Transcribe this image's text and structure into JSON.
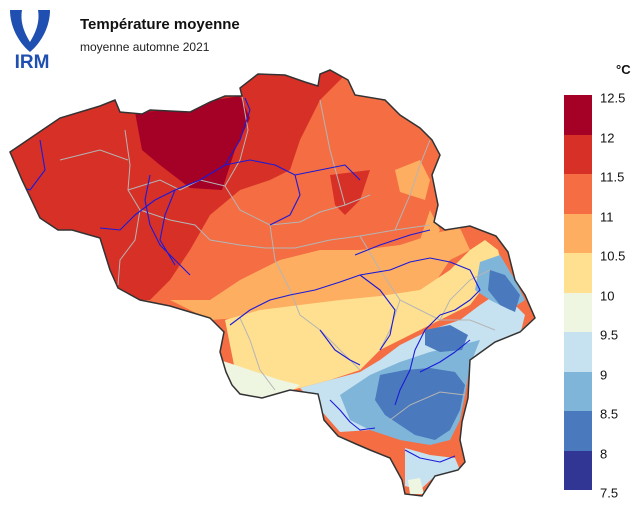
{
  "header": {
    "logo_text": "IRM",
    "title": "Température moyenne",
    "subtitle": "moyenne automne 2021"
  },
  "legend": {
    "unit": "°C",
    "labels": [
      "12.5",
      "12",
      "11.5",
      "11",
      "10.5",
      "10",
      "9.5",
      "9",
      "8.5",
      "8",
      "7.5"
    ],
    "colors": [
      "#a50026",
      "#d73027",
      "#f46d43",
      "#fdae61",
      "#fee090",
      "#eef6e2",
      "#c6e2f0",
      "#7fb5d9",
      "#4a79bd",
      "#313695"
    ]
  },
  "colors": {
    "border": "#333333",
    "rivers": "#1a1ad9",
    "admin": "#b5b5b5",
    "logo_blue": "#1f4fb0"
  }
}
